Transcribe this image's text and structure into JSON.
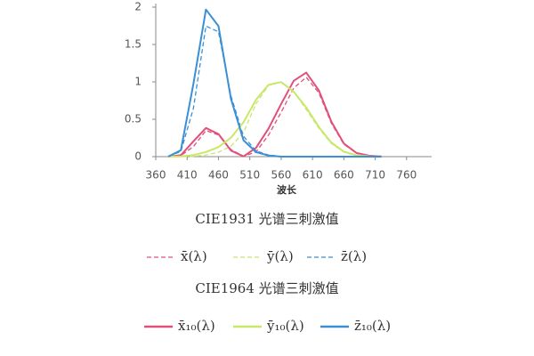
{
  "chart_data": {
    "type": "line",
    "x": [
      380,
      400,
      420,
      440,
      460,
      480,
      500,
      520,
      540,
      560,
      580,
      600,
      620,
      640,
      660,
      680,
      700,
      720
    ],
    "xlim": [
      360,
      800
    ],
    "xticks": [
      360,
      410,
      460,
      510,
      560,
      610,
      660,
      710,
      760
    ],
    "ylim": [
      0,
      2
    ],
    "yticks": [
      0,
      0.5,
      1,
      1.5,
      2
    ],
    "x_label": "波长",
    "legend_titles": [
      "CIE1931 光谱三刺激值",
      "CIE1964 光谱三刺激值"
    ],
    "series": [
      {
        "name": "x̄(λ)",
        "color": "#e0507a",
        "dashed": true,
        "values": [
          0.0014,
          0.0143,
          0.1344,
          0.3483,
          0.2908,
          0.0956,
          0.0049,
          0.0633,
          0.2904,
          0.5945,
          0.9163,
          1.0622,
          0.8544,
          0.4479,
          0.1649,
          0.0468,
          0.0114,
          0.0029
        ]
      },
      {
        "name": "ȳ(λ)",
        "color": "#c8e86a",
        "dashed": true,
        "values": [
          0,
          0.0004,
          0.004,
          0.023,
          0.06,
          0.139,
          0.323,
          0.71,
          0.954,
          0.995,
          0.87,
          0.631,
          0.381,
          0.175,
          0.061,
          0.017,
          0.0041,
          0.001
        ]
      },
      {
        "name": "z̄(λ)",
        "color": "#3b8fd6",
        "dashed": true,
        "values": [
          0.0065,
          0.0679,
          0.6456,
          1.7471,
          1.6692,
          0.813,
          0.272,
          0.0782,
          0.0203,
          0.0039,
          0.0017,
          0.0008,
          0.0002,
          0,
          0,
          0,
          0,
          0
        ]
      },
      {
        "name": "x̄₁₀(λ)",
        "color": "#e0507a",
        "dashed": false,
        "values": [
          0.0002,
          0.0191,
          0.2045,
          0.3837,
          0.3023,
          0.0805,
          0.0038,
          0.1177,
          0.3768,
          0.7052,
          1.0142,
          1.124,
          0.8876,
          0.4694,
          0.175,
          0.0502,
          0.013,
          0.0032
        ]
      },
      {
        "name": "ȳ₁₀(λ)",
        "color": "#c8e86a",
        "dashed": false,
        "values": [
          0,
          0.002,
          0.0214,
          0.0621,
          0.1282,
          0.2536,
          0.4608,
          0.7618,
          0.962,
          0.9973,
          0.8689,
          0.6583,
          0.3981,
          0.1876,
          0.067,
          0.019,
          0.0048,
          0.0012
        ]
      },
      {
        "name": "z̄₁₀(λ)",
        "color": "#3b8fd6",
        "dashed": false,
        "values": [
          0.0007,
          0.086,
          0.9725,
          1.9673,
          1.7454,
          0.7721,
          0.2185,
          0.0607,
          0.0137,
          0,
          0,
          0,
          0,
          0,
          0,
          0,
          0,
          0
        ]
      }
    ]
  }
}
